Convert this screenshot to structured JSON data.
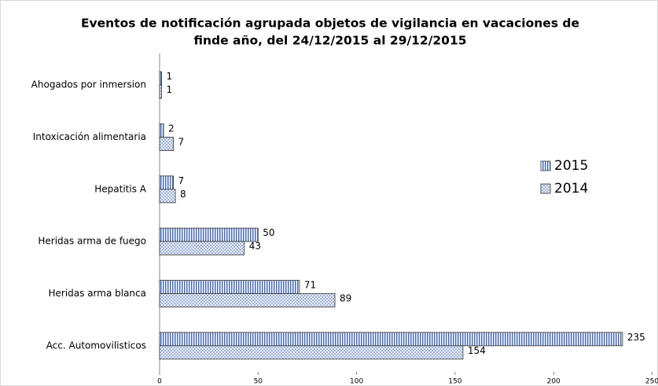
{
  "chart_data": {
    "type": "barh",
    "title": [
      "Eventos de notificación agrupada objetos de vigilancia en vacaciones de",
      "finde año, del 24/12/2015 al 29/12/2015"
    ],
    "categories": [
      "Ahogados por inmersion",
      "Intoxicación alimentaria",
      "Hepatitis A",
      "Heridas arma de fuego",
      "Heridas arma blanca",
      "Acc. Automovilisticos"
    ],
    "series": [
      {
        "name": "2015",
        "color": "#4a6bb0",
        "values": [
          1,
          2,
          7,
          50,
          71,
          235
        ]
      },
      {
        "name": "2014",
        "color": "#8fa5d2",
        "values": [
          1,
          7,
          8,
          43,
          89,
          154
        ]
      }
    ],
    "xlim": [
      0,
      250
    ],
    "xticks": [
      0,
      50,
      100,
      150,
      200,
      250
    ],
    "legend": "right"
  }
}
